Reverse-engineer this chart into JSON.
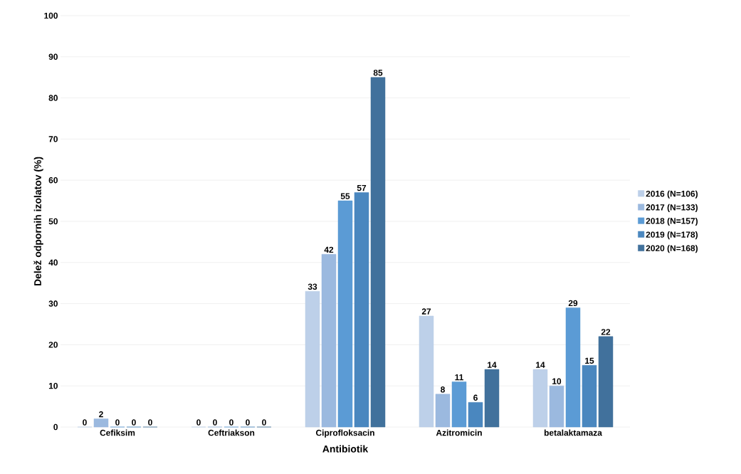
{
  "chart_data": {
    "type": "bar",
    "xlabel": "Antibiotik",
    "ylabel": "Delež odpornih izolatov (%)",
    "categories": [
      "Cefiksim",
      "Ceftriakson",
      "Ciprofloksacin",
      "Azitromicin",
      "betalaktamaza"
    ],
    "series": [
      {
        "name": "2016 (N=106)",
        "color": "#bdd0e9",
        "values": [
          0,
          0,
          33,
          27,
          14
        ]
      },
      {
        "name": "2017 (N=133)",
        "color": "#9bb9df",
        "values": [
          2,
          0,
          42,
          8,
          10
        ]
      },
      {
        "name": "2018 (N=157)",
        "color": "#5b9bd5",
        "values": [
          0,
          0,
          55,
          11,
          29
        ]
      },
      {
        "name": "2019 (N=178)",
        "color": "#4a87bf",
        "values": [
          0,
          0,
          57,
          6,
          15
        ]
      },
      {
        "name": "2020 (N=168)",
        "color": "#41719c",
        "values": [
          0,
          0,
          85,
          14,
          22
        ]
      }
    ],
    "ylim": [
      0,
      100
    ],
    "yticks": [
      0,
      10,
      20,
      30,
      40,
      50,
      60,
      70,
      80,
      90,
      100
    ],
    "grid": "y",
    "legend": "right",
    "data_labels": true
  }
}
